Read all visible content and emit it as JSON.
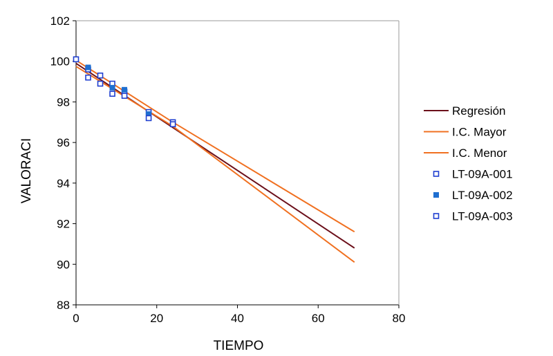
{
  "chart_data": {
    "type": "scatter",
    "title": "",
    "xlabel": "TIEMPO",
    "ylabel": "VALORACI",
    "xlim": [
      0,
      80
    ],
    "ylim": [
      88,
      102
    ],
    "xticks": [
      0,
      20,
      40,
      60,
      80
    ],
    "yticks": [
      88,
      90,
      92,
      94,
      96,
      98,
      100,
      102
    ],
    "grid": false,
    "legend_position": "right",
    "lines": [
      {
        "name": "Regresión",
        "color": "#6b0f1a",
        "x": [
          0,
          69
        ],
        "y": [
          99.9,
          90.8
        ]
      },
      {
        "name": "I.C. Mayor",
        "color": "#f07020",
        "x": [
          0,
          24,
          69
        ],
        "y": [
          100.05,
          97.0,
          91.6
        ]
      },
      {
        "name": "I.C. Menor",
        "color": "#f07020",
        "x": [
          0,
          24,
          69
        ],
        "y": [
          99.75,
          96.8,
          90.1
        ]
      }
    ],
    "series": [
      {
        "name": "LT-09A-001",
        "marker": "hollow-square",
        "color": "#1f3fd0",
        "x": [
          0,
          3,
          6,
          9,
          12,
          18,
          24
        ],
        "y": [
          100.1,
          99.6,
          99.3,
          98.9,
          98.5,
          97.5,
          97.0
        ]
      },
      {
        "name": "LT-09A-002",
        "marker": "filled-square",
        "color": "#1f6fd0",
        "x": [
          3,
          6,
          9,
          12,
          18,
          24
        ],
        "y": [
          99.7,
          98.9,
          98.7,
          98.6,
          97.4,
          96.9
        ]
      },
      {
        "name": "LT-09A-003",
        "marker": "hollow-square",
        "color": "#1f3fd0",
        "x": [
          3,
          6,
          9,
          12,
          18,
          24
        ],
        "y": [
          99.2,
          98.9,
          98.4,
          98.3,
          97.2,
          96.9
        ]
      }
    ]
  }
}
